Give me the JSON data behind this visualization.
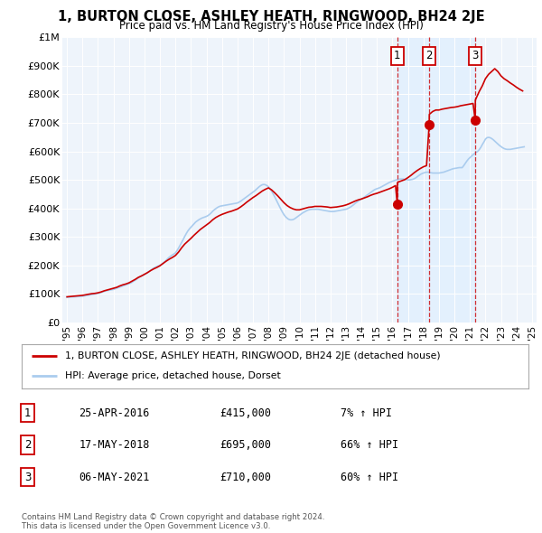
{
  "title": "1, BURTON CLOSE, ASHLEY HEATH, RINGWOOD, BH24 2JE",
  "subtitle": "Price paid vs. HM Land Registry's House Price Index (HPI)",
  "ylim": [
    0,
    1000000
  ],
  "yticks": [
    0,
    100000,
    200000,
    300000,
    400000,
    500000,
    600000,
    700000,
    800000,
    900000,
    1000000
  ],
  "ytick_labels": [
    "£0",
    "£100K",
    "£200K",
    "£300K",
    "£400K",
    "£500K",
    "£600K",
    "£700K",
    "£800K",
    "£900K",
    "£1M"
  ],
  "hpi_color": "#aaccee",
  "price_color": "#cc0000",
  "shade_color": "#ddeeff",
  "dashed_color": "#cc0000",
  "background_color": "#ffffff",
  "plot_bg": "#eef4fb",
  "legend_label_price": "1, BURTON CLOSE, ASHLEY HEATH, RINGWOOD, BH24 2JE (detached house)",
  "legend_label_hpi": "HPI: Average price, detached house, Dorset",
  "transactions": [
    {
      "num": 1,
      "date": "25-APR-2016",
      "price": 415000,
      "pct": "7%",
      "year": 2016.31
    },
    {
      "num": 2,
      "date": "17-MAY-2018",
      "price": 695000,
      "pct": "66%",
      "year": 2018.37
    },
    {
      "num": 3,
      "date": "06-MAY-2021",
      "price": 710000,
      "pct": "60%",
      "year": 2021.34
    }
  ],
  "copyright_text": "Contains HM Land Registry data © Crown copyright and database right 2024.\nThis data is licensed under the Open Government Licence v3.0.",
  "hpi_data_years": [
    1995.0,
    1995.1,
    1995.2,
    1995.3,
    1995.4,
    1995.5,
    1995.6,
    1995.7,
    1995.8,
    1995.9,
    1996.0,
    1996.1,
    1996.2,
    1996.3,
    1996.4,
    1996.5,
    1996.6,
    1996.7,
    1996.8,
    1996.9,
    1997.0,
    1997.1,
    1997.2,
    1997.3,
    1997.4,
    1997.5,
    1997.6,
    1997.7,
    1997.8,
    1997.9,
    1998.0,
    1998.1,
    1998.2,
    1998.3,
    1998.4,
    1998.5,
    1998.6,
    1998.7,
    1998.8,
    1998.9,
    1999.0,
    1999.1,
    1999.2,
    1999.3,
    1999.4,
    1999.5,
    1999.6,
    1999.7,
    1999.8,
    1999.9,
    2000.0,
    2000.1,
    2000.2,
    2000.3,
    2000.4,
    2000.5,
    2000.6,
    2000.7,
    2000.8,
    2000.9,
    2001.0,
    2001.1,
    2001.2,
    2001.3,
    2001.4,
    2001.5,
    2001.6,
    2001.7,
    2001.8,
    2001.9,
    2002.0,
    2002.1,
    2002.2,
    2002.3,
    2002.4,
    2002.5,
    2002.6,
    2002.7,
    2002.8,
    2002.9,
    2003.0,
    2003.1,
    2003.2,
    2003.3,
    2003.4,
    2003.5,
    2003.6,
    2003.7,
    2003.8,
    2003.9,
    2004.0,
    2004.1,
    2004.2,
    2004.3,
    2004.4,
    2004.5,
    2004.6,
    2004.7,
    2004.8,
    2004.9,
    2005.0,
    2005.1,
    2005.2,
    2005.3,
    2005.4,
    2005.5,
    2005.6,
    2005.7,
    2005.8,
    2005.9,
    2006.0,
    2006.1,
    2006.2,
    2006.3,
    2006.4,
    2006.5,
    2006.6,
    2006.7,
    2006.8,
    2006.9,
    2007.0,
    2007.1,
    2007.2,
    2007.3,
    2007.4,
    2007.5,
    2007.6,
    2007.7,
    2007.8,
    2007.9,
    2008.0,
    2008.1,
    2008.2,
    2008.3,
    2008.4,
    2008.5,
    2008.6,
    2008.7,
    2008.8,
    2008.9,
    2009.0,
    2009.1,
    2009.2,
    2009.3,
    2009.4,
    2009.5,
    2009.6,
    2009.7,
    2009.8,
    2009.9,
    2010.0,
    2010.1,
    2010.2,
    2010.3,
    2010.4,
    2010.5,
    2010.6,
    2010.7,
    2010.8,
    2010.9,
    2011.0,
    2011.1,
    2011.2,
    2011.3,
    2011.4,
    2011.5,
    2011.6,
    2011.7,
    2011.8,
    2011.9,
    2012.0,
    2012.1,
    2012.2,
    2012.3,
    2012.4,
    2012.5,
    2012.6,
    2012.7,
    2012.8,
    2012.9,
    2013.0,
    2013.1,
    2013.2,
    2013.3,
    2013.4,
    2013.5,
    2013.6,
    2013.7,
    2013.8,
    2013.9,
    2014.0,
    2014.1,
    2014.2,
    2014.3,
    2014.4,
    2014.5,
    2014.6,
    2014.7,
    2014.8,
    2014.9,
    2015.0,
    2015.1,
    2015.2,
    2015.3,
    2015.4,
    2015.5,
    2015.6,
    2015.7,
    2015.8,
    2015.9,
    2016.0,
    2016.1,
    2016.2,
    2016.3,
    2016.4,
    2016.5,
    2016.6,
    2016.7,
    2016.8,
    2016.9,
    2017.0,
    2017.1,
    2017.2,
    2017.3,
    2017.4,
    2017.5,
    2017.6,
    2017.7,
    2017.8,
    2017.9,
    2018.0,
    2018.1,
    2018.2,
    2018.3,
    2018.4,
    2018.5,
    2018.6,
    2018.7,
    2018.8,
    2018.9,
    2019.0,
    2019.1,
    2019.2,
    2019.3,
    2019.4,
    2019.5,
    2019.6,
    2019.7,
    2019.8,
    2019.9,
    2020.0,
    2020.1,
    2020.2,
    2020.3,
    2020.4,
    2020.5,
    2020.6,
    2020.7,
    2020.8,
    2020.9,
    2021.0,
    2021.1,
    2021.2,
    2021.3,
    2021.4,
    2021.5,
    2021.6,
    2021.7,
    2021.8,
    2021.9,
    2022.0,
    2022.1,
    2022.2,
    2022.3,
    2022.4,
    2022.5,
    2022.6,
    2022.7,
    2022.8,
    2022.9,
    2023.0,
    2023.1,
    2023.2,
    2023.3,
    2023.4,
    2023.5,
    2023.6,
    2023.7,
    2023.8,
    2023.9,
    2024.0,
    2024.1,
    2024.2,
    2024.3,
    2024.4,
    2024.5
  ],
  "hpi_data_values": [
    88000,
    88500,
    89000,
    89500,
    90000,
    90000,
    90500,
    91000,
    91000,
    91500,
    92000,
    93000,
    94000,
    95000,
    96000,
    97000,
    98000,
    99000,
    100000,
    101000,
    102000,
    103000,
    105000,
    107000,
    109000,
    111000,
    112000,
    113000,
    114000,
    115000,
    116000,
    118000,
    120000,
    122000,
    124000,
    126000,
    128000,
    130000,
    132000,
    134000,
    136000,
    138000,
    141000,
    145000,
    148000,
    152000,
    156000,
    160000,
    163000,
    165000,
    168000,
    171000,
    175000,
    179000,
    183000,
    187000,
    191000,
    194000,
    196000,
    198000,
    200000,
    204000,
    208000,
    213000,
    218000,
    224000,
    229000,
    233000,
    237000,
    240000,
    244000,
    252000,
    261000,
    271000,
    281000,
    291000,
    302000,
    312000,
    321000,
    328000,
    334000,
    340000,
    346000,
    352000,
    356000,
    360000,
    363000,
    366000,
    368000,
    370000,
    372000,
    375000,
    379000,
    384000,
    390000,
    395000,
    399000,
    403000,
    406000,
    408000,
    409000,
    410000,
    411000,
    412000,
    413000,
    414000,
    415000,
    416000,
    417000,
    418000,
    419000,
    422000,
    425000,
    429000,
    433000,
    437000,
    441000,
    445000,
    449000,
    453000,
    457000,
    461000,
    466000,
    471000,
    476000,
    480000,
    483000,
    484000,
    483000,
    480000,
    476000,
    469000,
    461000,
    451000,
    441000,
    430000,
    419000,
    408000,
    397000,
    387000,
    378000,
    371000,
    366000,
    362000,
    360000,
    360000,
    361000,
    364000,
    368000,
    372000,
    376000,
    380000,
    384000,
    387000,
    390000,
    393000,
    395000,
    396000,
    397000,
    397000,
    397000,
    397000,
    397000,
    396000,
    395000,
    394000,
    393000,
    392000,
    391000,
    390000,
    389000,
    389000,
    389000,
    390000,
    391000,
    392000,
    393000,
    394000,
    395000,
    396000,
    397000,
    399000,
    402000,
    405000,
    409000,
    413000,
    418000,
    422000,
    426000,
    430000,
    433000,
    436000,
    440000,
    444000,
    448000,
    452000,
    456000,
    460000,
    464000,
    467000,
    469000,
    471000,
    473000,
    476000,
    479000,
    482000,
    485000,
    488000,
    491000,
    493000,
    495000,
    497000,
    499000,
    501000,
    502000,
    503000,
    503000,
    503000,
    502000,
    501000,
    500000,
    500000,
    501000,
    502000,
    504000,
    507000,
    511000,
    515000,
    519000,
    522000,
    524000,
    526000,
    527000,
    527000,
    526000,
    525000,
    524000,
    524000,
    524000,
    524000,
    524000,
    525000,
    526000,
    527000,
    529000,
    531000,
    533000,
    535000,
    537000,
    539000,
    540000,
    541000,
    542000,
    543000,
    543000,
    543000,
    550000,
    558000,
    566000,
    573000,
    578000,
    583000,
    588000,
    593000,
    597000,
    600000,
    606000,
    614000,
    624000,
    633000,
    643000,
    648000,
    649000,
    648000,
    645000,
    641000,
    636000,
    631000,
    626000,
    621000,
    617000,
    613000,
    610000,
    608000,
    607000,
    607000,
    607000,
    608000,
    609000,
    610000,
    611000,
    612000,
    613000,
    614000,
    615000,
    616000
  ],
  "price_data_years": [
    1995.0,
    1995.2,
    1995.4,
    1995.6,
    1995.8,
    1996.0,
    1996.2,
    1996.4,
    1996.6,
    1996.8,
    1997.0,
    1997.2,
    1997.4,
    1997.6,
    1997.8,
    1998.0,
    1998.2,
    1998.4,
    1998.6,
    1998.8,
    1999.0,
    1999.2,
    1999.4,
    1999.6,
    1999.8,
    2000.0,
    2000.2,
    2000.4,
    2000.6,
    2000.8,
    2001.0,
    2001.2,
    2001.4,
    2001.6,
    2001.8,
    2002.0,
    2002.2,
    2002.4,
    2002.6,
    2002.8,
    2003.0,
    2003.2,
    2003.4,
    2003.6,
    2003.8,
    2004.0,
    2004.2,
    2004.4,
    2004.6,
    2004.8,
    2005.0,
    2005.2,
    2005.4,
    2005.6,
    2005.8,
    2006.0,
    2006.2,
    2006.4,
    2006.6,
    2006.8,
    2007.0,
    2007.2,
    2007.4,
    2007.6,
    2007.8,
    2008.0,
    2008.2,
    2008.4,
    2008.6,
    2008.8,
    2009.0,
    2009.2,
    2009.4,
    2009.6,
    2009.8,
    2010.0,
    2010.2,
    2010.4,
    2010.6,
    2010.8,
    2011.0,
    2011.2,
    2011.4,
    2011.6,
    2011.8,
    2012.0,
    2012.2,
    2012.4,
    2012.6,
    2012.8,
    2013.0,
    2013.2,
    2013.4,
    2013.6,
    2013.8,
    2014.0,
    2014.2,
    2014.4,
    2014.6,
    2014.8,
    2015.0,
    2015.2,
    2015.4,
    2015.6,
    2015.8,
    2016.0,
    2016.1,
    2016.2,
    2016.31,
    2016.32,
    2016.4,
    2016.6,
    2016.8,
    2017.0,
    2017.2,
    2017.4,
    2017.6,
    2017.8,
    2018.0,
    2018.2,
    2018.37,
    2018.38,
    2018.6,
    2018.8,
    2019.0,
    2019.2,
    2019.4,
    2019.6,
    2019.8,
    2020.0,
    2020.2,
    2020.4,
    2020.6,
    2020.8,
    2021.0,
    2021.2,
    2021.34,
    2021.35,
    2021.6,
    2021.8,
    2022.0,
    2022.2,
    2022.4,
    2022.6,
    2022.8,
    2023.0,
    2023.2,
    2023.4,
    2023.6,
    2023.8,
    2024.0,
    2024.2,
    2024.4
  ],
  "price_data_values": [
    90000,
    91000,
    92000,
    93000,
    94000,
    95000,
    97000,
    99000,
    101000,
    102000,
    104000,
    107000,
    111000,
    114000,
    117000,
    120000,
    123000,
    128000,
    132000,
    135000,
    139000,
    145000,
    151000,
    158000,
    163000,
    169000,
    175000,
    182000,
    188000,
    193000,
    199000,
    207000,
    215000,
    222000,
    228000,
    235000,
    247000,
    262000,
    275000,
    285000,
    295000,
    306000,
    316000,
    326000,
    334000,
    342000,
    350000,
    360000,
    368000,
    374000,
    379000,
    383000,
    387000,
    390000,
    394000,
    398000,
    405000,
    413000,
    422000,
    430000,
    438000,
    445000,
    453000,
    461000,
    467000,
    472000,
    465000,
    455000,
    444000,
    432000,
    420000,
    410000,
    403000,
    398000,
    395000,
    395000,
    398000,
    401000,
    404000,
    405000,
    407000,
    407000,
    407000,
    406000,
    405000,
    403000,
    404000,
    405000,
    407000,
    409000,
    412000,
    416000,
    421000,
    426000,
    430000,
    433000,
    437000,
    441000,
    446000,
    450000,
    453000,
    457000,
    461000,
    465000,
    469000,
    474000,
    477000,
    480000,
    415000,
    490000,
    493000,
    497000,
    501000,
    508000,
    516000,
    525000,
    533000,
    540000,
    546000,
    550000,
    695000,
    730000,
    740000,
    745000,
    745000,
    748000,
    750000,
    752000,
    754000,
    755000,
    757000,
    760000,
    762000,
    764000,
    766000,
    768000,
    710000,
    780000,
    810000,
    830000,
    855000,
    870000,
    880000,
    890000,
    880000,
    865000,
    855000,
    848000,
    840000,
    833000,
    825000,
    818000,
    812000
  ]
}
